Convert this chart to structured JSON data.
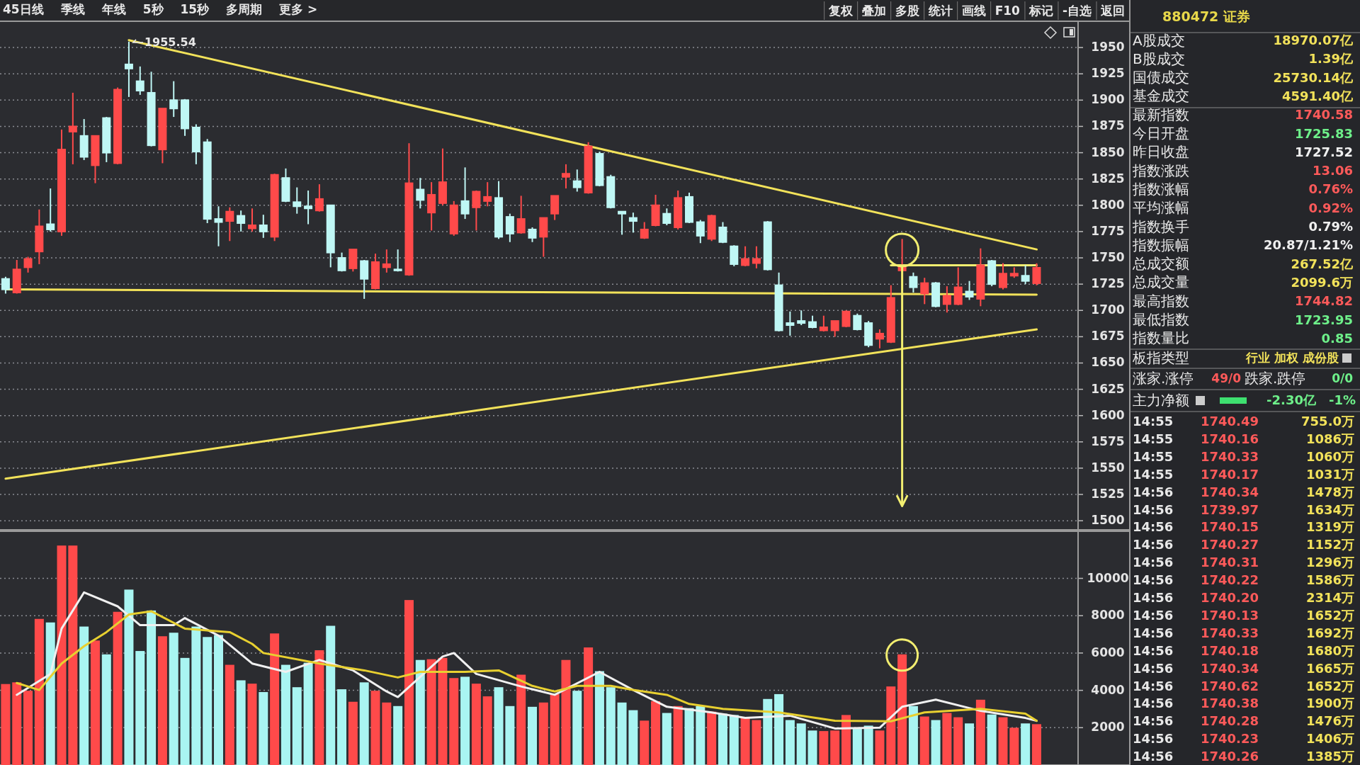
{
  "chart_data": [
    {
      "type": "candlestick",
      "categories": [
        null,
        null,
        null,
        null,
        null,
        null,
        null,
        null,
        null,
        null,
        null,
        null,
        null,
        null,
        null,
        null,
        null,
        null,
        null,
        null,
        null,
        null,
        null,
        null,
        null,
        null,
        null,
        null,
        null,
        null,
        null,
        null,
        null,
        null,
        null,
        null,
        null,
        null,
        null,
        null,
        null,
        null,
        null,
        null,
        null,
        null,
        null,
        null,
        null,
        null,
        null,
        null,
        null,
        null,
        null,
        null,
        null,
        null,
        null,
        null,
        null,
        null,
        null,
        null,
        null,
        null,
        null,
        null,
        null,
        null,
        null,
        null,
        null,
        null,
        null,
        null,
        null,
        null,
        null,
        null,
        null,
        null,
        null,
        null,
        null,
        null,
        null,
        null,
        null,
        null,
        null,
        null,
        null
      ],
      "ohlc": [
        [
          1730,
          1732,
          1716,
          1720
        ],
        [
          1717,
          1748,
          1716,
          1739
        ],
        [
          1741,
          1751,
          1736,
          1749
        ],
        [
          1756,
          1796,
          1744,
          1780
        ],
        [
          1782,
          1816,
          1775,
          1777
        ],
        [
          1775,
          1872,
          1771,
          1853
        ],
        [
          1870,
          1907,
          1839,
          1875
        ],
        [
          1866,
          1882,
          1843,
          1846
        ],
        [
          1838,
          1866,
          1821,
          1866
        ],
        [
          1883,
          1884,
          1841,
          1850
        ],
        [
          1840,
          1912,
          1839,
          1910
        ],
        [
          1934,
          1955.54,
          1903,
          1930
        ],
        [
          1918,
          1932,
          1905,
          1909
        ],
        [
          1907,
          1927,
          1856,
          1857
        ],
        [
          1853,
          1892,
          1840,
          1892
        ],
        [
          1900,
          1918,
          1884,
          1892
        ],
        [
          1900,
          1901,
          1866,
          1873
        ],
        [
          1874,
          1877,
          1839,
          1851
        ],
        [
          1860,
          1863,
          1783,
          1787
        ],
        [
          1787,
          1799,
          1761,
          1784
        ],
        [
          1785,
          1798,
          1766,
          1794
        ],
        [
          1790,
          1795,
          1775,
          1783
        ],
        [
          1778,
          1797,
          1775,
          1781
        ],
        [
          1781,
          1791,
          1769,
          1775
        ],
        [
          1770,
          1830,
          1766,
          1829
        ],
        [
          1826,
          1835,
          1803,
          1804
        ],
        [
          1803,
          1817,
          1792,
          1799
        ],
        [
          1799,
          1814,
          1782,
          1797
        ],
        [
          1795,
          1820,
          1794,
          1806
        ],
        [
          1800,
          1800,
          1741,
          1755
        ],
        [
          1750,
          1755,
          1737,
          1738
        ],
        [
          1740,
          1758,
          1737,
          1758
        ],
        [
          1747,
          1748,
          1711,
          1730
        ],
        [
          1721,
          1754,
          1720,
          1746
        ],
        [
          1741,
          1758,
          1736,
          1744
        ],
        [
          1739,
          1758,
          1737,
          1738
        ],
        [
          1734,
          1859,
          1733,
          1821
        ],
        [
          1815,
          1826,
          1797,
          1805
        ],
        [
          1793,
          1822,
          1776,
          1810
        ],
        [
          1802,
          1854,
          1800,
          1822
        ],
        [
          1773,
          1804,
          1771,
          1800
        ],
        [
          1804,
          1836,
          1787,
          1792
        ],
        [
          1798,
          1814,
          1776,
          1813
        ],
        [
          1804,
          1822,
          1799,
          1808
        ],
        [
          1807,
          1823,
          1768,
          1770
        ],
        [
          1789,
          1792,
          1765,
          1773
        ],
        [
          1774,
          1809,
          1773,
          1787
        ],
        [
          1777,
          1779,
          1765,
          1769
        ],
        [
          1770,
          1788,
          1751,
          1788
        ],
        [
          1792,
          1809,
          1786,
          1809
        ],
        [
          1827,
          1839,
          1816,
          1830
        ],
        [
          1823,
          1834,
          1813,
          1817
        ],
        [
          1812,
          1860,
          1811,
          1856
        ],
        [
          1849,
          1851,
          1818,
          1819
        ],
        [
          1827,
          1829,
          1797,
          1798
        ],
        [
          1794,
          1794,
          1772,
          1792
        ],
        [
          1788,
          1793,
          1774,
          1785
        ],
        [
          1769,
          1784,
          1768,
          1777
        ],
        [
          1781,
          1810,
          1780,
          1800
        ],
        [
          1792,
          1797,
          1781,
          1783
        ],
        [
          1779,
          1814,
          1777,
          1807
        ],
        [
          1808,
          1812,
          1783,
          1784
        ],
        [
          1784,
          1786,
          1764,
          1771
        ],
        [
          1768,
          1791,
          1766,
          1790
        ],
        [
          1779,
          1784,
          1764,
          1765
        ],
        [
          1761,
          1762,
          1742,
          1744
        ],
        [
          1743,
          1761,
          1742,
          1749
        ],
        [
          1745,
          1761,
          1740,
          1749
        ],
        [
          1784,
          1785,
          1738,
          1739
        ],
        [
          1724,
          1736,
          1680,
          1681
        ],
        [
          1688,
          1699,
          1676,
          1686
        ],
        [
          1690,
          1700,
          1686,
          1688
        ],
        [
          1689,
          1695,
          1683,
          1684
        ],
        [
          1681,
          1695,
          1680,
          1684
        ],
        [
          1681,
          1690,
          1675,
          1690
        ],
        [
          1685,
          1700,
          1684,
          1699
        ],
        [
          1695,
          1697,
          1681,
          1682
        ],
        [
          1688,
          1690,
          1665,
          1667
        ],
        [
          1673,
          1682,
          1664,
          1678
        ],
        [
          1670,
          1724,
          1669,
          1712
        ],
        [
          1738,
          1768,
          1737,
          1742
        ],
        [
          1732,
          1736,
          1717,
          1722
        ],
        [
          1716,
          1731,
          1706,
          1726
        ],
        [
          1726,
          1727,
          1703,
          1704
        ],
        [
          1706,
          1723,
          1698,
          1714
        ],
        [
          1706,
          1741,
          1705,
          1722
        ],
        [
          1718,
          1728,
          1710,
          1713
        ],
        [
          1711,
          1759,
          1704,
          1743
        ],
        [
          1747,
          1748,
          1723,
          1725
        ],
        [
          1722,
          1745,
          1720,
          1735
        ],
        [
          1733,
          1741,
          1731,
          1735
        ],
        [
          1733,
          1743,
          1725,
          1728
        ],
        [
          1725.83,
          1744.82,
          1723.95,
          1740.58
        ]
      ],
      "colors": [
        "#bff7f5",
        "#ff4a4a",
        "#ff4a4a",
        "#ff4a4a",
        "#bff7f5",
        "#ff4a4a",
        "#ff4a4a",
        "#bff7f5",
        "#ff4a4a",
        "#bff7f5",
        "#ff4a4a",
        "#bff7f5",
        "#bff7f5",
        "#bff7f5",
        "#ff4a4a",
        "#bff7f5",
        "#bff7f5",
        "#bff7f5",
        "#bff7f5",
        "#bff7f5",
        "#ff4a4a",
        "#bff7f5",
        "#ff4a4a",
        "#bff7f5",
        "#ff4a4a",
        "#bff7f5",
        "#bff7f5",
        "#bff7f5",
        "#ff4a4a",
        "#bff7f5",
        "#bff7f5",
        "#ff4a4a",
        "#bff7f5",
        "#ff4a4a",
        "#ff4a4a",
        "#bff7f5",
        "#ff4a4a",
        "#bff7f5",
        "#ff4a4a",
        "#ff4a4a",
        "#ff4a4a",
        "#bff7f5",
        "#ff4a4a",
        "#ff4a4a",
        "#bff7f5",
        "#bff7f5",
        "#ff4a4a",
        "#bff7f5",
        "#ff4a4a",
        "#ff4a4a",
        "#ff4a4a",
        "#bff7f5",
        "#ff4a4a",
        "#bff7f5",
        "#bff7f5",
        "#bff7f5",
        "#bff7f5",
        "#ff4a4a",
        "#ff4a4a",
        "#bff7f5",
        "#ff4a4a",
        "#bff7f5",
        "#bff7f5",
        "#ff4a4a",
        "#bff7f5",
        "#bff7f5",
        "#ff4a4a",
        "#ff4a4a",
        "#bff7f5",
        "#bff7f5",
        "#bff7f5",
        "#bff7f5",
        "#bff7f5",
        "#ff4a4a",
        "#ff4a4a",
        "#ff4a4a",
        "#bff7f5",
        "#bff7f5",
        "#ff4a4a",
        "#ff4a4a",
        "#ff4a4a",
        "#bff7f5",
        "#ff4a4a",
        "#bff7f5",
        "#ff4a4a",
        "#ff4a4a",
        "#bff7f5",
        "#ff4a4a",
        "#bff7f5",
        "#ff4a4a",
        "#ff4a4a",
        "#bff7f5",
        "#ff4a4a"
      ],
      "series": [
        {
          "type": "line",
          "color": "#f2e25a",
          "values": [
            null,
            null,
            null,
            null,
            null,
            null,
            null,
            null,
            null,
            null,
            null,
            1957,
            null,
            null,
            null,
            null,
            null,
            null,
            null,
            null,
            null,
            null,
            null,
            null,
            null,
            null,
            null,
            null,
            null,
            null,
            null,
            null,
            null,
            null,
            null,
            null,
            null,
            null,
            null,
            null,
            null,
            null,
            null,
            null,
            null,
            null,
            null,
            null,
            null,
            null,
            null,
            null,
            null,
            null,
            null,
            null,
            null,
            null,
            null,
            null,
            null,
            null,
            null,
            null,
            null,
            null,
            null,
            null,
            null,
            null,
            null,
            null,
            null,
            null,
            null,
            null,
            null,
            null,
            null,
            null,
            null,
            null,
            null,
            null,
            null,
            null,
            null,
            null,
            null,
            null,
            null,
            null,
            1758
          ]
        },
        {
          "type": "line",
          "color": "#f2e25a",
          "values": [
            1720,
            null,
            null,
            null,
            null,
            null,
            null,
            null,
            null,
            null,
            null,
            null,
            null,
            null,
            null,
            null,
            null,
            null,
            null,
            null,
            null,
            null,
            null,
            null,
            null,
            null,
            null,
            null,
            null,
            null,
            null,
            null,
            null,
            null,
            null,
            null,
            null,
            null,
            null,
            null,
            null,
            null,
            null,
            null,
            null,
            null,
            null,
            null,
            null,
            null,
            null,
            null,
            null,
            null,
            null,
            null,
            null,
            null,
            null,
            null,
            null,
            null,
            null,
            null,
            null,
            null,
            null,
            null,
            null,
            null,
            null,
            null,
            null,
            null,
            null,
            null,
            null,
            null,
            null,
            null,
            null,
            null,
            null,
            null,
            null,
            null,
            null,
            null,
            null,
            null,
            null,
            null,
            1715
          ]
        },
        {
          "type": "line",
          "color": "#f2e25a",
          "values": [
            1540,
            null,
            null,
            null,
            null,
            null,
            null,
            null,
            null,
            null,
            null,
            null,
            null,
            null,
            null,
            null,
            null,
            null,
            null,
            null,
            null,
            null,
            null,
            null,
            null,
            null,
            null,
            null,
            null,
            null,
            null,
            null,
            null,
            null,
            null,
            null,
            null,
            null,
            null,
            null,
            null,
            null,
            null,
            null,
            null,
            null,
            null,
            null,
            null,
            null,
            null,
            null,
            null,
            null,
            null,
            null,
            null,
            null,
            null,
            null,
            null,
            null,
            null,
            null,
            null,
            null,
            null,
            null,
            null,
            null,
            null,
            null,
            null,
            null,
            null,
            null,
            null,
            null,
            null,
            null,
            null,
            null,
            null,
            null,
            null,
            null,
            null,
            null,
            null,
            null,
            null,
            null,
            1682
          ]
        },
        {
          "type": "line",
          "color": "#f2ee70",
          "values": [
            null,
            null,
            null,
            null,
            null,
            null,
            null,
            null,
            null,
            null,
            null,
            null,
            null,
            null,
            null,
            null,
            null,
            null,
            null,
            null,
            null,
            null,
            null,
            null,
            null,
            null,
            null,
            null,
            null,
            null,
            null,
            null,
            null,
            null,
            null,
            null,
            null,
            null,
            null,
            null,
            null,
            null,
            null,
            null,
            null,
            null,
            null,
            null,
            null,
            null,
            null,
            null,
            null,
            null,
            null,
            null,
            null,
            null,
            null,
            null,
            null,
            null,
            null,
            null,
            null,
            null,
            null,
            null,
            null,
            null,
            null,
            null,
            null,
            null,
            null,
            null,
            null,
            null,
            null,
            1743,
            null,
            null,
            null,
            null,
            null,
            null,
            null,
            null,
            null,
            null,
            null,
            null,
            1743
          ]
        }
      ],
      "ylim": [
        1490,
        1975
      ],
      "yticks": [
        1500,
        1525,
        1550,
        1575,
        1600,
        1625,
        1650,
        1675,
        1700,
        1725,
        1750,
        1775,
        1800,
        1825,
        1850,
        1875,
        1900,
        1925,
        1950
      ],
      "grid": "y",
      "tick_labels": "y",
      "annotations": [
        "1955.54",
        "45日线",
        "季线",
        "年线",
        "5秒",
        "15秒",
        "多周期",
        "更多 >",
        "复权",
        "叠加",
        "多股",
        "统计",
        "画线",
        "F10",
        "标记",
        "-自选",
        "返回"
      ]
    },
    {
      "type": "bar",
      "categories": [
        null,
        null,
        null,
        null,
        null,
        null,
        null,
        null,
        null,
        null,
        null,
        null,
        null,
        null,
        null,
        null,
        null,
        null,
        null,
        null,
        null,
        null,
        null,
        null,
        null,
        null,
        null,
        null,
        null,
        null,
        null,
        null,
        null,
        null,
        null,
        null,
        null,
        null,
        null,
        null,
        null,
        null,
        null,
        null,
        null,
        null,
        null,
        null,
        null,
        null,
        null,
        null,
        null,
        null,
        null,
        null,
        null,
        null,
        null,
        null,
        null,
        null,
        null,
        null,
        null,
        null,
        null,
        null,
        null,
        null,
        null,
        null,
        null,
        null,
        null,
        null,
        null,
        null,
        null,
        null,
        null,
        null,
        null,
        null,
        null,
        null,
        null,
        null,
        null,
        null,
        null,
        null,
        null
      ],
      "series": [
        {
          "type": "bar",
          "values": [
            4300,
            4390,
            3940,
            7790,
            7600,
            11720,
            11720,
            7380,
            6630,
            5890,
            8170,
            9360,
            6070,
            8240,
            6860,
            7050,
            5700,
            7380,
            6820,
            6930,
            5330,
            4500,
            4320,
            3870,
            7010,
            5330,
            4130,
            5440,
            6110,
            7420,
            4020,
            3350,
            4390,
            3940,
            3310,
            3120,
            8800,
            5590,
            5630,
            5700,
            4620,
            4690,
            4320,
            3640,
            4130,
            3120,
            4800,
            3080,
            3310,
            3760,
            5590,
            3940,
            6260,
            4990,
            4130,
            3310,
            2900,
            2340,
            3380,
            2750,
            3120,
            3010,
            3120,
            2820,
            2710,
            2640,
            2520,
            2370,
            3500,
            3760,
            2370,
            2190,
            1810,
            1780,
            1810,
            2640,
            1960,
            2070,
            1810,
            4170,
            5890,
            3120,
            2560,
            2370,
            2750,
            2520,
            2190,
            3460,
            2670,
            2520,
            1960,
            2190,
            2150
          ],
          "colors": [
            "#ff4a4a",
            "#ff4a4a",
            "#ff4a4a",
            "#ff4a4a",
            "#a9f5f2",
            "#ff4a4a",
            "#ff4a4a",
            "#a9f5f2",
            "#ff4a4a",
            "#a9f5f2",
            "#ff4a4a",
            "#a9f5f2",
            "#a9f5f2",
            "#a9f5f2",
            "#ff4a4a",
            "#a9f5f2",
            "#a9f5f2",
            "#a9f5f2",
            "#a9f5f2",
            "#a9f5f2",
            "#ff4a4a",
            "#a9f5f2",
            "#ff4a4a",
            "#a9f5f2",
            "#ff4a4a",
            "#a9f5f2",
            "#a9f5f2",
            "#a9f5f2",
            "#ff4a4a",
            "#a9f5f2",
            "#a9f5f2",
            "#ff4a4a",
            "#a9f5f2",
            "#ff4a4a",
            "#ff4a4a",
            "#a9f5f2",
            "#ff4a4a",
            "#a9f5f2",
            "#ff4a4a",
            "#ff4a4a",
            "#ff4a4a",
            "#a9f5f2",
            "#ff4a4a",
            "#ff4a4a",
            "#a9f5f2",
            "#a9f5f2",
            "#ff4a4a",
            "#a9f5f2",
            "#ff4a4a",
            "#ff4a4a",
            "#ff4a4a",
            "#a9f5f2",
            "#ff4a4a",
            "#a9f5f2",
            "#a9f5f2",
            "#a9f5f2",
            "#a9f5f2",
            "#ff4a4a",
            "#ff4a4a",
            "#a9f5f2",
            "#ff4a4a",
            "#a9f5f2",
            "#a9f5f2",
            "#ff4a4a",
            "#a9f5f2",
            "#a9f5f2",
            "#ff4a4a",
            "#ff4a4a",
            "#a9f5f2",
            "#a9f5f2",
            "#a9f5f2",
            "#a9f5f2",
            "#a9f5f2",
            "#ff4a4a",
            "#ff4a4a",
            "#ff4a4a",
            "#a9f5f2",
            "#a9f5f2",
            "#ff4a4a",
            "#ff4a4a",
            "#ff4a4a",
            "#a9f5f2",
            "#ff4a4a",
            "#a9f5f2",
            "#ff4a4a",
            "#ff4a4a",
            "#a9f5f2",
            "#ff4a4a",
            "#a9f5f2",
            "#ff4a4a",
            "#ff4a4a",
            "#a9f5f2",
            "#ff4a4a"
          ]
        },
        {
          "type": "line",
          "color": "#f0f0f0",
          "values": [
            null,
            3760,
            null,
            null,
            4880,
            7310,
            null,
            9250,
            null,
            null,
            8500,
            null,
            7490,
            null,
            null,
            7490,
            7870,
            null,
            null,
            6930,
            null,
            null,
            5440,
            null,
            null,
            4990,
            null,
            null,
            5630,
            null,
            null,
            5070,
            null,
            null,
            3940,
            3640,
            null,
            null,
            null,
            5810,
            6000,
            null,
            4880,
            null,
            null,
            null,
            4210,
            null,
            null,
            3760,
            null,
            null,
            null,
            4990,
            null,
            null,
            4020,
            null,
            null,
            3120,
            null,
            null,
            null,
            2820,
            null,
            null,
            2520,
            null,
            null,
            null,
            2640,
            null,
            null,
            null,
            1960,
            null,
            null,
            null,
            2000,
            null,
            3120,
            null,
            null,
            3500,
            null,
            null,
            null,
            2900,
            null,
            null,
            null,
            2520,
            2370
          ]
        },
        {
          "type": "line",
          "color": "#e8d030",
          "values": [
            null,
            4390,
            null,
            4020,
            null,
            5440,
            null,
            6370,
            null,
            7120,
            null,
            8060,
            null,
            8240,
            null,
            null,
            7310,
            null,
            null,
            null,
            7120,
            null,
            6490,
            6000,
            null,
            null,
            null,
            null,
            5440,
            null,
            null,
            null,
            5070,
            null,
            null,
            4690,
            null,
            4990,
            null,
            null,
            null,
            4990,
            null,
            null,
            5070,
            null,
            null,
            4240,
            null,
            3940,
            null,
            4240,
            null,
            null,
            4240,
            null,
            4020,
            null,
            null,
            3760,
            null,
            3270,
            null,
            null,
            3010,
            null,
            null,
            null,
            null,
            2820,
            null,
            null,
            null,
            null,
            2370,
            null,
            null,
            null,
            null,
            2340,
            null,
            null,
            2820,
            null,
            null,
            null,
            null,
            3010,
            null,
            null,
            null,
            2750,
            2370
          ]
        }
      ],
      "ylim": [
        0,
        12600
      ],
      "yticks": [
        2000,
        4000,
        6000,
        8000,
        10000
      ],
      "grid": "y",
      "tick_labels": "y"
    },
    {
      "type": "other",
      "annotations": [
        "880472 证券",
        "A股成交",
        "18970.07亿",
        "B股成交",
        "1.39亿",
        "国债成交",
        "25730.14亿",
        "基金成交",
        "4591.40亿",
        "最新指数",
        "1740.58",
        "今日开盘",
        "1725.83",
        "昨日收盘",
        "1727.52",
        "指数涨跌",
        "13.06",
        "指数涨幅",
        "0.76%",
        "平均涨幅",
        "0.92%",
        "指数换手",
        "0.79%",
        "指数振幅",
        "20.87/1.21%",
        "总成交额",
        "267.52亿",
        "总成交量",
        "2099.6万",
        "最高指数",
        "1744.82",
        "最低指数",
        "1723.95",
        "指数量比",
        "0.85",
        "板指类型",
        "行业 加权 成份股",
        "涨家.涨停",
        "49/0",
        "跌家.跌停",
        "0/0",
        "主力净额",
        "-2.30亿",
        "-1%",
        "14:55",
        "1740.49",
        "755.0万",
        "14:55",
        "1740.16",
        "1086万",
        "14:55",
        "1740.33",
        "1060万",
        "14:55",
        "1740.17",
        "1031万",
        "14:56",
        "1740.34",
        "1478万",
        "14:56",
        "1739.97",
        "1634万",
        "14:56",
        "1740.15",
        "1319万",
        "14:56",
        "1740.27",
        "1152万",
        "14:56",
        "1740.31",
        "1296万",
        "14:56",
        "1740.22",
        "1586万",
        "14:56",
        "1740.20",
        "2314万",
        "14:56",
        "1740.13",
        "1652万",
        "14:56",
        "1740.33",
        "1692万",
        "14:56",
        "1740.18",
        "1680万",
        "14:56",
        "1740.34",
        "1665万",
        "14:56",
        "1740.62",
        "1652万",
        "14:56",
        "1740.38",
        "1900万",
        "14:56",
        "1740.28",
        "1476万",
        "14:56",
        "1740.23",
        "1406万",
        "14:56",
        "1740.26",
        "1385万"
      ]
    }
  ]
}
